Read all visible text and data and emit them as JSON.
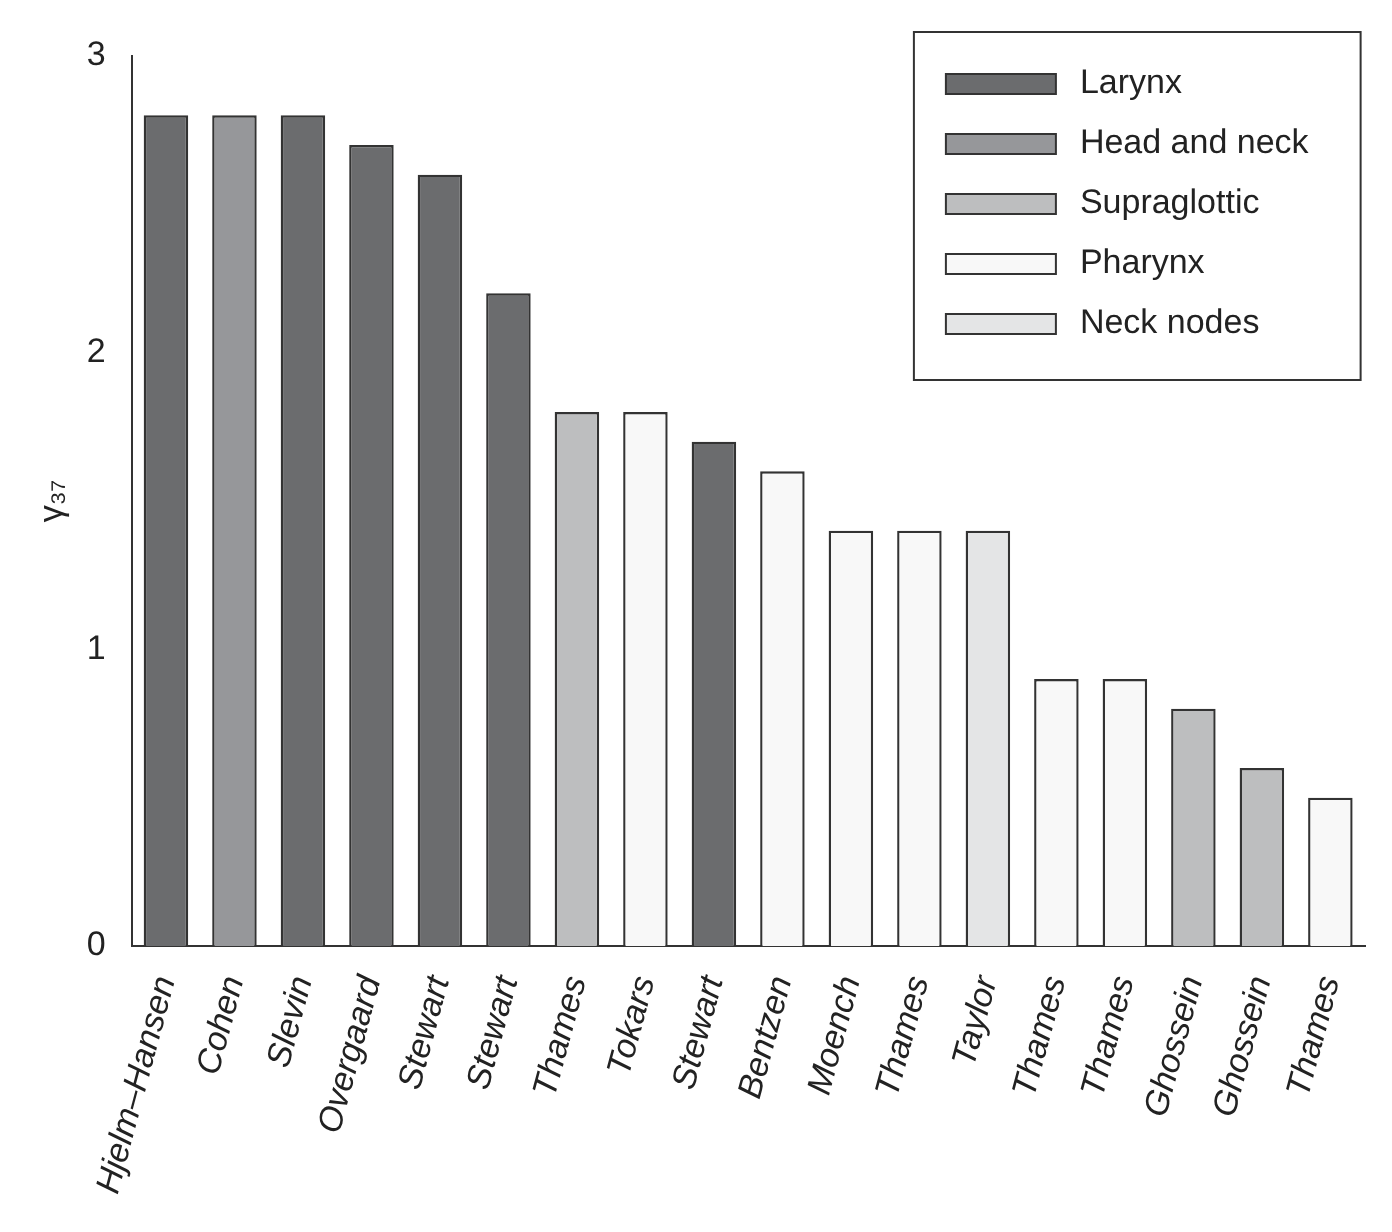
{
  "chart_data": {
    "type": "bar",
    "ylabel": "γ₃₇",
    "categories": [
      "Hjelm–Hansen",
      "Cohen",
      "Slevin",
      "Overgaard",
      "Stewart",
      "Stewart",
      "Thames",
      "Tokars",
      "Stewart",
      "Bentzen",
      "Moench",
      "Thames",
      "Taylor",
      "Thames",
      "Thames",
      "Ghossein",
      "Ghossein",
      "Thames"
    ],
    "series": [
      {
        "name": "Larynx",
        "color": "#6b6c6e",
        "values": [
          2.8,
          null,
          2.8,
          2.7,
          2.6,
          2.2,
          null,
          null,
          1.7,
          null,
          null,
          null,
          null,
          null,
          null,
          null,
          null,
          null
        ]
      },
      {
        "name": "Head and neck",
        "color": "#96979a",
        "values": [
          null,
          2.8,
          null,
          null,
          null,
          null,
          null,
          null,
          null,
          null,
          null,
          null,
          null,
          null,
          null,
          null,
          null,
          null
        ]
      },
      {
        "name": "Supraglottic",
        "color": "#bdbebf",
        "values": [
          null,
          null,
          null,
          null,
          null,
          null,
          1.8,
          null,
          null,
          null,
          null,
          null,
          null,
          null,
          null,
          0.8,
          0.6,
          null
        ]
      },
      {
        "name": "Pharynx",
        "color": "#f8f8f8",
        "values": [
          null,
          null,
          null,
          null,
          null,
          null,
          null,
          1.8,
          null,
          1.6,
          1.4,
          1.4,
          null,
          0.9,
          0.9,
          null,
          null,
          0.5
        ]
      },
      {
        "name": "Neck nodes",
        "color": "#e4e5e6",
        "values": [
          null,
          null,
          null,
          null,
          null,
          null,
          null,
          null,
          null,
          null,
          null,
          null,
          1.4,
          null,
          null,
          null,
          null,
          null
        ]
      }
    ],
    "ylim": [
      0,
      3
    ],
    "yticks": [
      0,
      1,
      2,
      3
    ],
    "grid": false,
    "legend": "top right"
  }
}
